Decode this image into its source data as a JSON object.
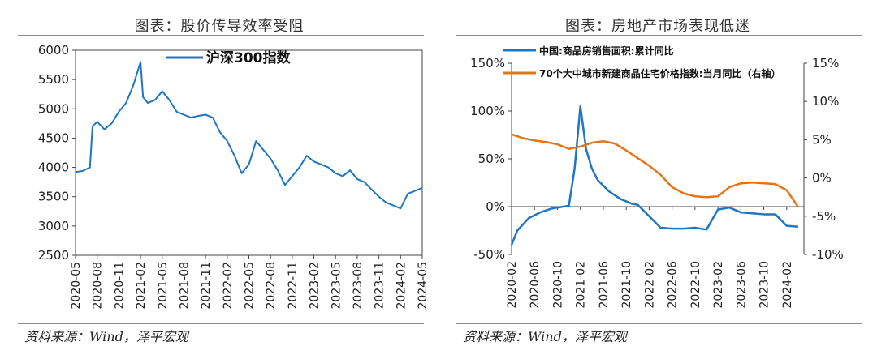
{
  "left_panel": {
    "title": "图表：股价传导效率受阻",
    "source": "资料来源：Wind，泽平宏观"
  },
  "right_panel": {
    "title": "图表：房地产市场表现低迷",
    "source": "资料来源：Wind，泽平宏观"
  },
  "colors": {
    "blue": "#1f77c4",
    "orange": "#e4741a"
  },
  "chart_data": [
    {
      "type": "line",
      "title": "",
      "xlabel": "",
      "ylabel": "",
      "ylim": [
        2500,
        6000
      ],
      "yticks": [
        "2500",
        "3000",
        "3500",
        "4000",
        "4500",
        "5000",
        "5500",
        "6000"
      ],
      "xticks": [
        "2020-05",
        "2020-08",
        "2020-11",
        "2021-02",
        "2021-05",
        "2021-08",
        "2021-11",
        "2022-02",
        "2022-05",
        "2022-08",
        "2022-11",
        "2023-02",
        "2023-05",
        "2023-08",
        "2023-11",
        "2024-02",
        "2024-05"
      ],
      "legend_position": "top-center",
      "series": [
        {
          "name": "沪深300指数",
          "x": [
            "2020-05",
            "2020-06",
            "2020-07",
            "2020-07",
            "2020-08",
            "2020-09",
            "2020-10",
            "2020-11",
            "2020-12",
            "2021-01",
            "2021-02",
            "2021-02",
            "2021-03",
            "2021-04",
            "2021-05",
            "2021-06",
            "2021-07",
            "2021-08",
            "2021-09",
            "2021-10",
            "2021-11",
            "2021-12",
            "2022-01",
            "2022-02",
            "2022-03",
            "2022-04",
            "2022-05",
            "2022-06",
            "2022-07",
            "2022-08",
            "2022-09",
            "2022-10",
            "2022-11",
            "2022-12",
            "2023-01",
            "2023-02",
            "2023-03",
            "2023-04",
            "2023-05",
            "2023-06",
            "2023-07",
            "2023-08",
            "2023-09",
            "2023-10",
            "2023-11",
            "2023-12",
            "2024-01",
            "2024-02",
            "2024-03",
            "2024-04",
            "2024-05"
          ],
          "values": [
            3920,
            3940,
            4000,
            4700,
            4780,
            4650,
            4750,
            4950,
            5100,
            5400,
            5800,
            5200,
            5100,
            5150,
            5300,
            5150,
            4950,
            4900,
            4850,
            4880,
            4900,
            4850,
            4600,
            4450,
            4200,
            3900,
            4050,
            4450,
            4300,
            4150,
            3950,
            3700,
            3850,
            4000,
            4200,
            4100,
            4050,
            4000,
            3900,
            3850,
            3950,
            3800,
            3750,
            3620,
            3500,
            3400,
            3350,
            3300,
            3550,
            3600,
            3650
          ]
        }
      ]
    },
    {
      "type": "line",
      "title": "",
      "xlabel": "",
      "ylabel": "",
      "ylim": [
        -50,
        150
      ],
      "y2lim": [
        -10,
        15
      ],
      "yticks": [
        "-50%",
        "0%",
        "50%",
        "100%",
        "150%"
      ],
      "y2ticks": [
        "-10%",
        "-5%",
        "0%",
        "5%",
        "10%",
        "15%"
      ],
      "xticks": [
        "2020-02",
        "2020-06",
        "2020-10",
        "2021-02",
        "2021-06",
        "2021-10",
        "2022-02",
        "2022-06",
        "2022-10",
        "2023-02",
        "2023-06",
        "2023-10",
        "2024-02"
      ],
      "legend_position": "top-left",
      "series": [
        {
          "name": "中国:商品房销售面积:累计同比",
          "axis": "left",
          "x": [
            "2020-02",
            "2020-03",
            "2020-05",
            "2020-07",
            "2020-09",
            "2020-11",
            "2020-12",
            "2021-01",
            "2021-02",
            "2021-03",
            "2021-04",
            "2021-05",
            "2021-07",
            "2021-09",
            "2021-11",
            "2021-12",
            "2022-02",
            "2022-04",
            "2022-06",
            "2022-08",
            "2022-10",
            "2022-12",
            "2023-02",
            "2023-04",
            "2023-06",
            "2023-08",
            "2023-10",
            "2023-12",
            "2024-02",
            "2024-04"
          ],
          "values": [
            -40,
            -25,
            -12,
            -6,
            -2,
            0,
            1,
            40,
            105,
            60,
            40,
            28,
            16,
            8,
            3,
            2,
            -10,
            -22,
            -23,
            -23,
            -22,
            -24,
            -3,
            -1,
            -6,
            -7,
            -8,
            -8,
            -20,
            -21
          ]
        },
        {
          "name": "70个大中城市新建商品住宅价格指数:当月同比（右轴）",
          "axis": "right",
          "x": [
            "2020-02",
            "2020-04",
            "2020-06",
            "2020-08",
            "2020-10",
            "2020-12",
            "2021-02",
            "2021-04",
            "2021-06",
            "2021-08",
            "2021-10",
            "2021-12",
            "2022-02",
            "2022-04",
            "2022-06",
            "2022-08",
            "2022-10",
            "2022-12",
            "2023-02",
            "2023-04",
            "2023-06",
            "2023-08",
            "2023-10",
            "2023-12",
            "2024-02",
            "2024-04"
          ],
          "values": [
            5.7,
            5.2,
            4.9,
            4.7,
            4.4,
            3.8,
            4.1,
            4.6,
            4.8,
            4.5,
            3.6,
            2.6,
            1.6,
            0.4,
            -1.2,
            -2.0,
            -2.4,
            -2.5,
            -2.4,
            -1.2,
            -0.7,
            -0.6,
            -0.7,
            -0.8,
            -1.6,
            -3.8
          ]
        }
      ]
    }
  ]
}
